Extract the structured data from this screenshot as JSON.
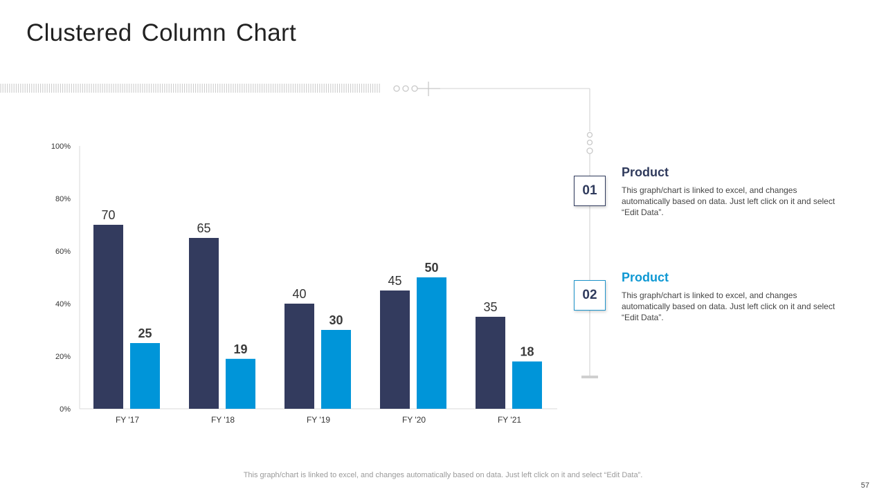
{
  "page": {
    "title": "Clustered Column Chart",
    "page_number": "57",
    "footer_note": "This graph/chart is linked to excel, and changes automatically based on data. Just left click on it and select “Edit Data”."
  },
  "legend": [
    {
      "number": "01",
      "title": "Product",
      "description": "This graph/chart is linked to excel, and changes automatically based on data. Just left click on it and select “Edit Data”.",
      "color": "#2f3a5c"
    },
    {
      "number": "02",
      "title": "Product",
      "description": "This graph/chart is linked to excel, and changes automatically based on data. Just left click on it and select “Edit Data”.",
      "color": "#0e98d3"
    }
  ],
  "chart_data": {
    "type": "bar",
    "title": "Clustered Column Chart",
    "categories": [
      "FY '17",
      "FY '18",
      "FY '19",
      "FY '20",
      "FY '21"
    ],
    "series": [
      {
        "name": "Product 01",
        "values": [
          70,
          65,
          40,
          45,
          35
        ],
        "color": "#333b5e",
        "label_bold": false
      },
      {
        "name": "Product 02",
        "values": [
          25,
          19,
          30,
          50,
          18
        ],
        "color": "#0095d9",
        "label_bold": true
      }
    ],
    "ylim": [
      0,
      100
    ],
    "yticks": [
      0,
      20,
      40,
      60,
      80,
      100
    ],
    "ytick_labels": [
      "0%",
      "20%",
      "40%",
      "60%",
      "80%",
      "100%"
    ],
    "xlabel": "",
    "ylabel": "",
    "grid": false,
    "legend_position": "right"
  }
}
